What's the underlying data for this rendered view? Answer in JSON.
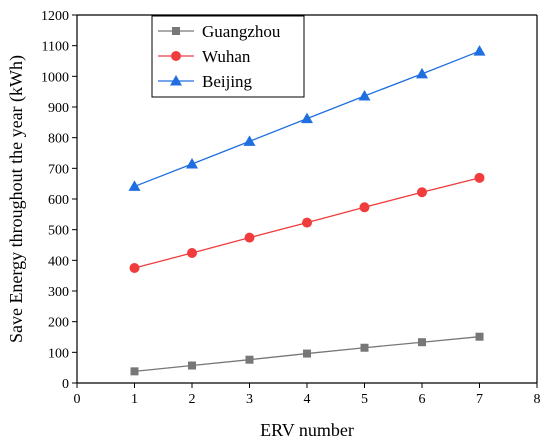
{
  "chart_data": {
    "type": "line",
    "xlabel": "ERV number",
    "ylabel": "Save Energy throughout the year (kWh)",
    "xlim": [
      0,
      8
    ],
    "ylim": [
      0,
      1200
    ],
    "x_ticks": [
      0,
      1,
      2,
      3,
      4,
      5,
      6,
      7,
      8
    ],
    "y_ticks": [
      0,
      100,
      200,
      300,
      400,
      500,
      600,
      700,
      800,
      900,
      1000,
      1100,
      1200
    ],
    "grid": false,
    "legend_position": "top-left",
    "x": [
      1,
      2,
      3,
      4,
      5,
      6,
      7
    ],
    "series": [
      {
        "name": "Guangzhou",
        "color": "#777777",
        "marker": "square",
        "values": [
          38,
          57,
          76,
          96,
          115,
          133,
          151
        ]
      },
      {
        "name": "Wuhan",
        "color": "#f03c3c",
        "marker": "circle",
        "values": [
          375,
          424,
          474,
          523,
          573,
          622,
          669
        ]
      },
      {
        "name": "Beijing",
        "color": "#1f6fe0",
        "marker": "triangle",
        "values": [
          641,
          714,
          788,
          862,
          936,
          1008,
          1082
        ]
      }
    ]
  }
}
